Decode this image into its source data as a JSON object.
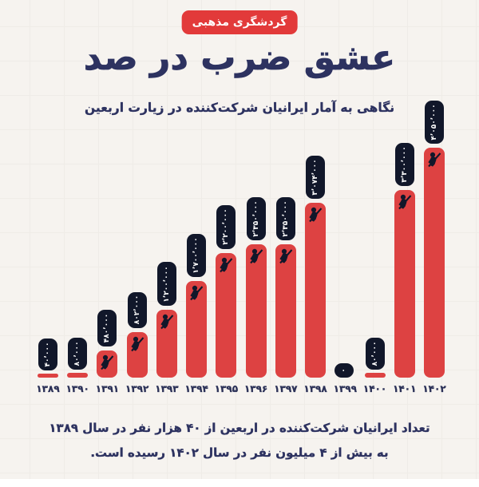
{
  "badge": {
    "label": "گردشگری مذهبی"
  },
  "title": "عشق ضرب در صد",
  "subtitle": "نگاهی به آمار ایرانیان شرکت‌کننده در زیارت اربعین",
  "footer": {
    "line1": "تعداد ایرانیان شرکت‌کننده در اربعین از ۴۰ هزار نفر در سال ۱۳۸۹",
    "line2": "به بیش از ۴ میلیون نفر در سال ۱۴۰۲ رسیده است."
  },
  "colors": {
    "red": "#dd4242",
    "badge_red": "#e23a3a",
    "navy": "#2d3260",
    "pill_dark": "#11172a",
    "background": "#f6f3ef"
  },
  "chart_data": {
    "type": "bar",
    "title": "عشق ضرب در صد",
    "categories": [
      "۱۳۸۹",
      "۱۳۹۰",
      "۱۳۹۱",
      "۱۳۹۲",
      "۱۳۹۳",
      "۱۳۹۴",
      "۱۳۹۵",
      "۱۳۹۶",
      "۱۳۹۷",
      "۱۳۹۸",
      "۱۳۹۹",
      "۱۴۰۰",
      "۱۴۰۱",
      "۱۴۰۲"
    ],
    "values": [
      40000,
      80000,
      480000,
      802000,
      1200000,
      1700000,
      2200000,
      2350000,
      2350000,
      3074000,
      0,
      80000,
      3300000,
      4050000
    ],
    "value_labels": [
      "۴۰٬۰۰۰",
      "۸۰٬۰۰۰",
      "۴۸۰٬۰۰۰",
      "۸۰۲٬۰۰۰",
      "۱٬۲۰۰٬۰۰۰",
      "۱٬۷۰۰٬۰۰۰",
      "۲٬۲۰۰٬۰۰۰",
      "۲٬۳۵۰٬۰۰۰",
      "۲٬۳۵۰٬۰۰۰",
      "۳٬۰۷۴٬۰۰۰",
      "۰",
      "۸۰٬۰۰۰",
      "۳٬۳۰۰٬۰۰۰",
      "۴٬۰۵۰٬۰۰۰"
    ],
    "xlabel": "",
    "ylabel": "",
    "ylim": [
      0,
      4300000
    ],
    "grid": false,
    "legend": false,
    "bar_color": "#dd4242"
  }
}
